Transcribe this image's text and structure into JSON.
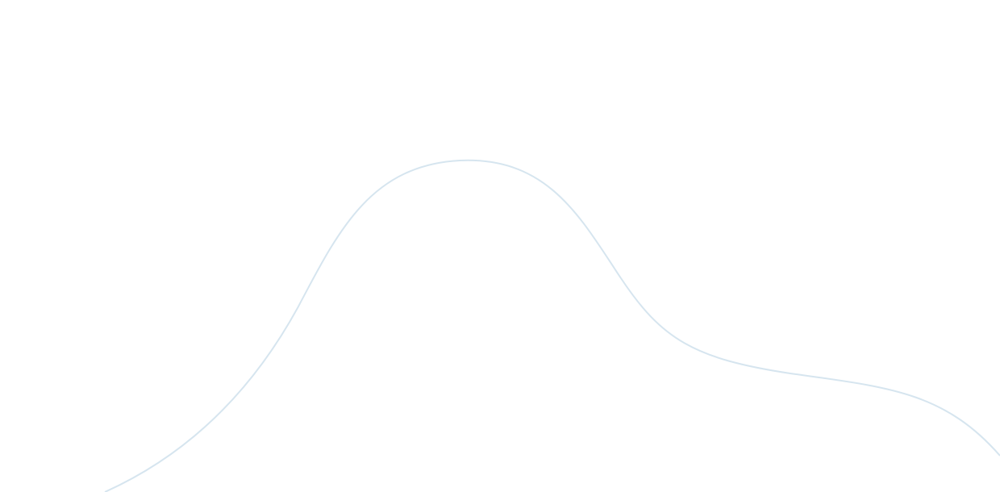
{
  "background_color": "#ffffff",
  "decoration": {
    "type": "wave-line",
    "stroke_color": "#d6e5ef"
  }
}
